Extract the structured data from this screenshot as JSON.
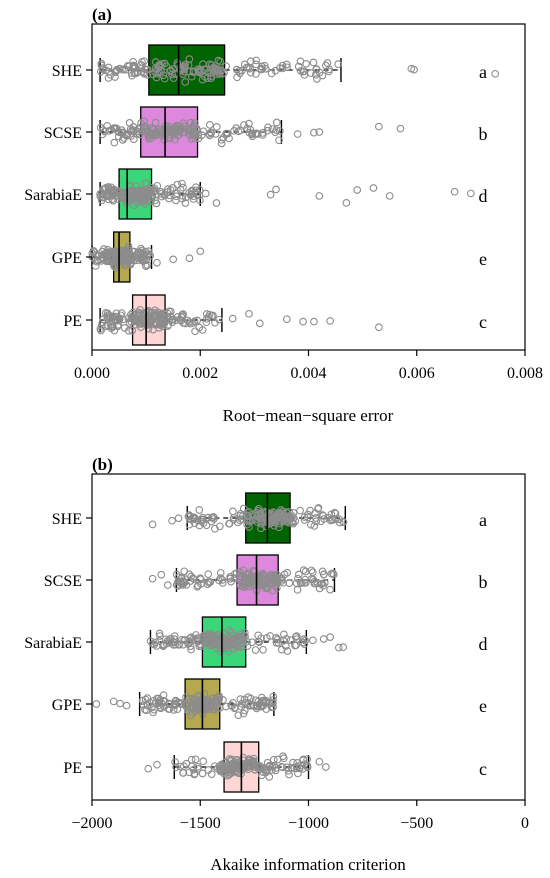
{
  "chart_data": [
    {
      "type": "box",
      "panel_label": "(a)",
      "xlabel": "Root−mean−square error",
      "xlim": [
        0,
        0.008
      ],
      "xticks": [
        0.0,
        0.002,
        0.004,
        0.006,
        0.008
      ],
      "xtick_labels": [
        "0.000",
        "0.002",
        "0.004",
        "0.006",
        "0.008"
      ],
      "grid": false,
      "categories": [
        "SHE",
        "SCSE",
        "SarabiaE",
        "GPE",
        "PE"
      ],
      "groups": [
        "a",
        "b",
        "d",
        "e",
        "c"
      ],
      "colors": [
        "#006400",
        "#dd88dd",
        "#3cd67a",
        "#b5a94f",
        "#ffd6d6"
      ],
      "boxes": [
        {
          "whisker_low": 0.00015,
          "q1": 0.00105,
          "median": 0.0016,
          "q3": 0.00245,
          "whisker_high": 0.0046,
          "outliers": [
            0.0059,
            0.00595,
            0.00745
          ]
        },
        {
          "whisker_low": 0.00015,
          "q1": 0.0009,
          "median": 0.00135,
          "q3": 0.00195,
          "whisker_high": 0.0035,
          "outliers": [
            0.0038,
            0.0041,
            0.0042,
            0.0053,
            0.0057
          ]
        },
        {
          "whisker_low": 0.00015,
          "q1": 0.0005,
          "median": 0.00065,
          "q3": 0.0011,
          "whisker_high": 0.002,
          "outliers": [
            0.0021,
            0.0023,
            0.0033,
            0.0034,
            0.0042,
            0.0047,
            0.0049,
            0.0052,
            0.0055,
            0.0067,
            0.007
          ]
        },
        {
          "whisker_low": 0.0,
          "q1": 0.0004,
          "median": 0.0005,
          "q3": 0.0007,
          "whisker_high": 0.0011,
          "outliers": [
            0.0012,
            0.0015,
            0.0018,
            0.002
          ]
        },
        {
          "whisker_low": 0.00015,
          "q1": 0.00075,
          "median": 0.001,
          "q3": 0.00135,
          "whisker_high": 0.0024,
          "outliers": [
            0.0026,
            0.0029,
            0.0031,
            0.0036,
            0.0039,
            0.0041,
            0.0044,
            0.0053
          ]
        }
      ]
    },
    {
      "type": "box",
      "panel_label": "(b)",
      "xlabel": "Akaike information criterion",
      "xlim": [
        -2000,
        0
      ],
      "xticks": [
        -2000,
        -1500,
        -1000,
        -500,
        0
      ],
      "xtick_labels": [
        "−2000",
        "−1500",
        "−1000",
        "−500",
        "0"
      ],
      "grid": false,
      "categories": [
        "SHE",
        "SCSE",
        "SarabiaE",
        "GPE",
        "PE"
      ],
      "groups": [
        "a",
        "b",
        "d",
        "e",
        "c"
      ],
      "colors": [
        "#006400",
        "#dd88dd",
        "#3cd67a",
        "#b5a94f",
        "#ffd6d6"
      ],
      "boxes": [
        {
          "whisker_low": -1560,
          "q1": -1290,
          "median": -1190,
          "q3": -1085,
          "whisker_high": -830,
          "outliers": [
            -1720,
            -1630,
            -1600
          ]
        },
        {
          "whisker_low": -1610,
          "q1": -1330,
          "median": -1240,
          "q3": -1140,
          "whisker_high": -880,
          "outliers": [
            -1720,
            -1680,
            -1650
          ]
        },
        {
          "whisker_low": -1730,
          "q1": -1490,
          "median": -1400,
          "q3": -1290,
          "whisker_high": -1010,
          "outliers": [
            -980,
            -930,
            -900,
            -860,
            -840
          ]
        },
        {
          "whisker_low": -1780,
          "q1": -1570,
          "median": -1490,
          "q3": -1410,
          "whisker_high": -1160,
          "outliers": [
            -1980,
            -1900,
            -1870,
            -1840
          ]
        },
        {
          "whisker_low": -1620,
          "q1": -1390,
          "median": -1310,
          "q3": -1230,
          "whisker_high": -1000,
          "outliers": [
            -1740,
            -1700,
            -950,
            -920
          ]
        }
      ]
    }
  ]
}
